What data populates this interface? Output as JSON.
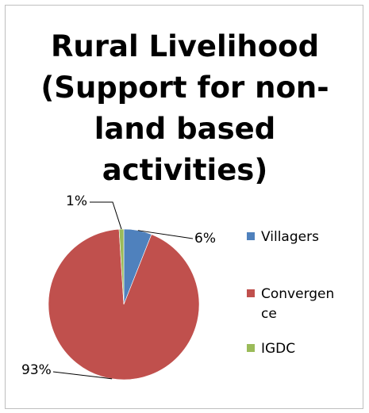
{
  "chart_data": {
    "type": "pie",
    "title_lines": [
      "Rural Livelihood",
      "(Support for non-",
      "land based",
      "activities)"
    ],
    "slices": [
      {
        "name": "Villagers",
        "value": 6,
        "label": "6%",
        "color": "#4f81bd"
      },
      {
        "name": "Convergence",
        "value": 93,
        "label": "93%",
        "color": "#c0504d"
      },
      {
        "name": "IGDC",
        "value": 1,
        "label": "1%",
        "color": "#9bbb59"
      }
    ],
    "legend": {
      "position": "right",
      "entries": [
        {
          "lines": [
            "Villagers"
          ]
        },
        {
          "lines": [
            "Convergen",
            "ce"
          ]
        },
        {
          "lines": [
            "IGDC"
          ]
        }
      ]
    }
  }
}
